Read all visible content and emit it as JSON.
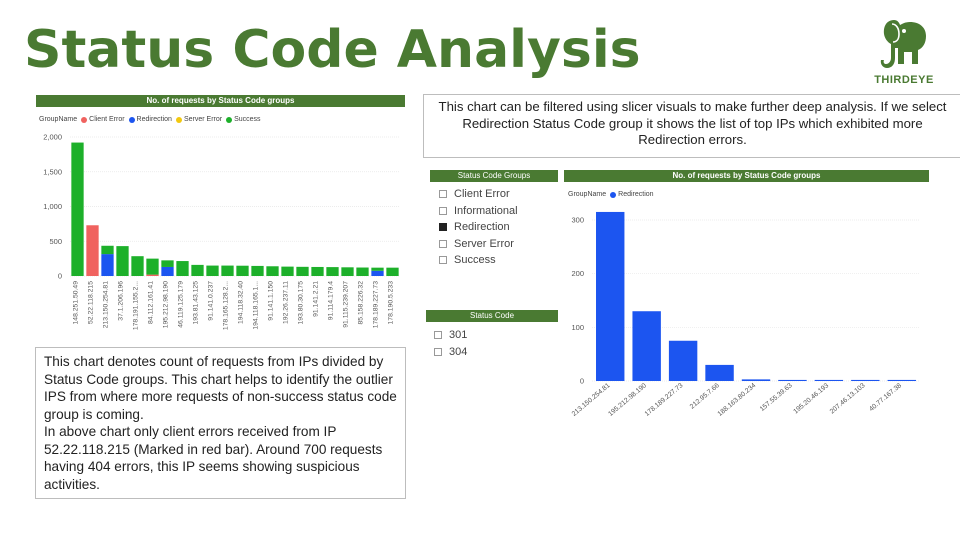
{
  "title": "Status Code Analysis",
  "logo": {
    "text": "THIRDEYE",
    "icon": "elephant-icon",
    "color": "#4a7a32"
  },
  "colors": {
    "brand_green": "#4a7a32",
    "client_error": "#f0625f",
    "redirection": "#1c55f0",
    "server_error": "#f2c80f",
    "success": "#1db02a"
  },
  "left_chart": {
    "header": "No. of requests by Status Code groups",
    "legend": {
      "title": "GroupName",
      "items": [
        {
          "name": "Client Error",
          "color": "#f0625f"
        },
        {
          "name": "Redirection",
          "color": "#1c55f0"
        },
        {
          "name": "Server Error",
          "color": "#f2c80f"
        },
        {
          "name": "Success",
          "color": "#1db02a"
        }
      ]
    }
  },
  "right_chart": {
    "header": "No. of requests by Status Code groups",
    "legend": {
      "title": "GroupName",
      "items": [
        {
          "name": "Redirection",
          "color": "#1c55f0"
        }
      ]
    }
  },
  "chart_data": [
    {
      "type": "bar",
      "stacked": true,
      "title": "No. of requests by Status Code groups",
      "legend_title": "GroupName",
      "legend_position": "top-left",
      "categories": [
        "148.251.50.49",
        "52.22.118.215",
        "213.150.254.81",
        "37.1.206.196",
        "178.191.155.2...",
        "84.112.161.41",
        "195.212.98.190",
        "46.119.125.179",
        "193.81.43.125",
        "91.141.0.237",
        "178.165.128.2...",
        "194.118.32.40",
        "194.118.165.1...",
        "91.141.1.150",
        "192.26.237.11",
        "193.80.30.175",
        "91.141.2.21",
        "91.114.179.4",
        "91.115.239.207",
        "85.158.226.32",
        "178.189.227.73",
        "178.190.5.233"
      ],
      "series": [
        {
          "name": "Client Error",
          "values": [
            0,
            730,
            0,
            0,
            0,
            20,
            0,
            0,
            0,
            0,
            0,
            0,
            0,
            0,
            0,
            0,
            0,
            0,
            0,
            0,
            0,
            0
          ]
        },
        {
          "name": "Redirection",
          "values": [
            0,
            0,
            315,
            0,
            0,
            0,
            130,
            0,
            0,
            0,
            0,
            0,
            0,
            0,
            0,
            0,
            0,
            0,
            0,
            0,
            75,
            0
          ]
        },
        {
          "name": "Server Error",
          "values": [
            0,
            0,
            0,
            0,
            0,
            0,
            0,
            0,
            0,
            0,
            0,
            0,
            0,
            0,
            0,
            0,
            0,
            0,
            0,
            0,
            0,
            0
          ]
        },
        {
          "name": "Success",
          "values": [
            1920,
            0,
            120,
            430,
            285,
            230,
            95,
            215,
            160,
            150,
            150,
            148,
            145,
            140,
            135,
            132,
            130,
            128,
            125,
            122,
            45,
            120
          ]
        }
      ],
      "ylim": [
        0,
        2000
      ],
      "yticks": [
        "0",
        "500",
        "1,000",
        "1,500",
        "2,000"
      ],
      "grid": true
    },
    {
      "type": "bar",
      "title": "No. of requests by Status Code groups",
      "legend_title": "GroupName",
      "legend_position": "top-left",
      "categories": [
        "213.150.254.81",
        "195.212.98.190",
        "178.189.227.73",
        "212.95.7.66",
        "188.163.80.234",
        "157.55.39.63",
        "195.20.46.193",
        "207.46.13.103",
        "40.77.167.38"
      ],
      "series": [
        {
          "name": "Redirection",
          "values": [
            315,
            130,
            75,
            30,
            3,
            2,
            2,
            2,
            2
          ]
        }
      ],
      "ylim": [
        0,
        300
      ],
      "yticks": [
        "0",
        "100",
        "200",
        "300"
      ],
      "grid": true
    }
  ],
  "top_note": "This chart can be filtered using slicer visuals to make further deep analysis. If we select Redirection Status Code group it shows the list of top IPs which exhibited more Redirection errors.",
  "bottom_note": {
    "paragraph1": "This chart denotes count of requests from IPs divided by Status Code groups. This chart helps to identify the outlier IPS from where more requests of non-success status code group is coming.",
    "paragraph2": "In above chart only client errors received from IP 52.22.118.215 (Marked in red bar). Around 700 requests having 404 errors, this IP seems showing suspicious activities."
  },
  "slicer_groups": {
    "title": "Status Code Groups",
    "items": [
      {
        "label": "Client Error",
        "checked": false
      },
      {
        "label": "Informational",
        "checked": false
      },
      {
        "label": "Redirection",
        "checked": true
      },
      {
        "label": "Server Error",
        "checked": false
      },
      {
        "label": "Success",
        "checked": false
      }
    ]
  },
  "slicer_codes": {
    "title": "Status Code",
    "items": [
      {
        "label": "301",
        "checked": false
      },
      {
        "label": "304",
        "checked": false
      }
    ]
  }
}
